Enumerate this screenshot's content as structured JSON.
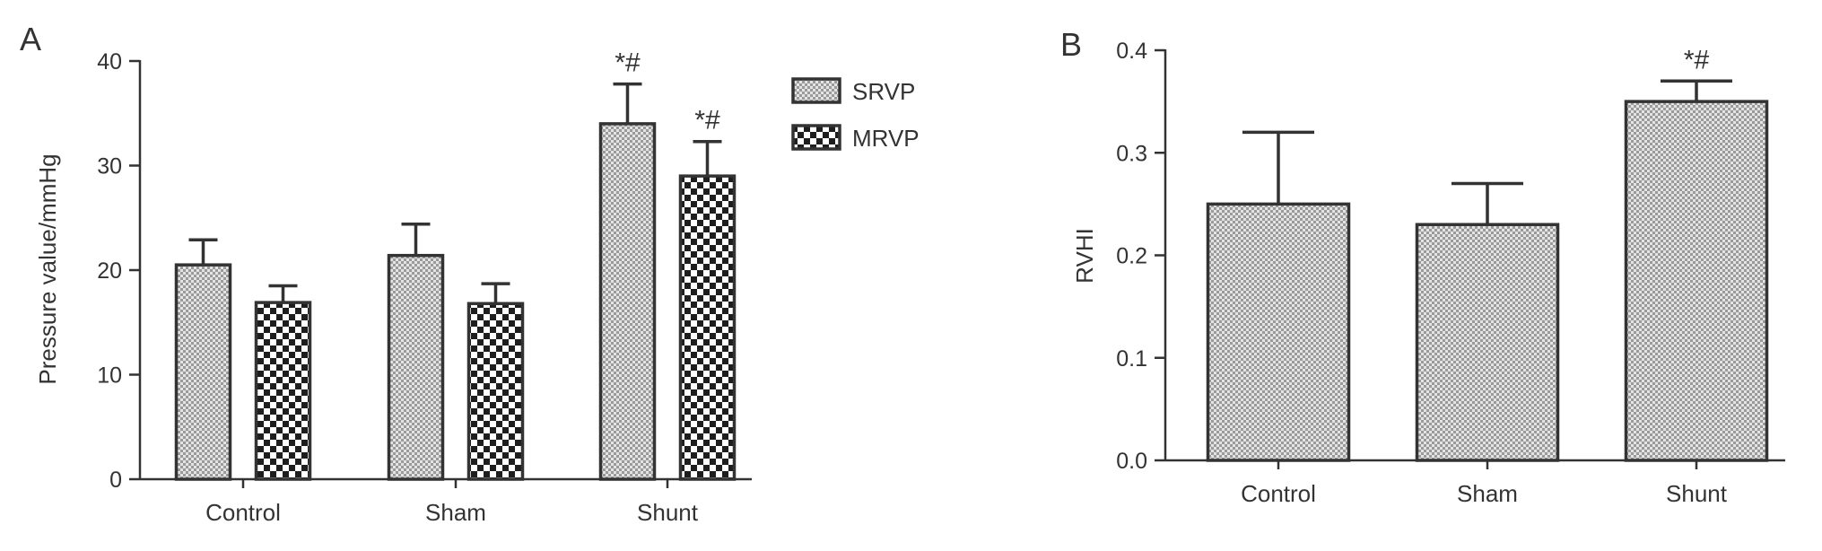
{
  "chart_data": [
    {
      "panel_label": "A",
      "type": "bar",
      "categories": [
        "Control",
        "Sham",
        "Shunt"
      ],
      "series": [
        {
          "name": "SRVP",
          "values": [
            20.5,
            21.4,
            34.0
          ],
          "errors": [
            2.4,
            3.0,
            3.8
          ],
          "pattern": "fine-dots"
        },
        {
          "name": "MRVP",
          "values": [
            16.9,
            16.8,
            29.0
          ],
          "errors": [
            1.6,
            1.9,
            3.3
          ],
          "pattern": "checker"
        }
      ],
      "annotations": [
        {
          "category": 2,
          "series": 0,
          "text": "*#"
        },
        {
          "category": 2,
          "series": 1,
          "text": "*#"
        }
      ],
      "ylabel": "Pressure value/mmHg",
      "xlabel": "",
      "ylim": [
        0,
        40
      ],
      "yticks": [
        "0",
        "10",
        "20",
        "30",
        "40"
      ],
      "legend": "top-right",
      "grid": false
    },
    {
      "panel_label": "B",
      "type": "bar",
      "categories": [
        "Control",
        "Sham",
        "Shunt"
      ],
      "series": [
        {
          "values": [
            0.25,
            0.23,
            0.35
          ],
          "errors": [
            0.07,
            0.04,
            0.02
          ],
          "pattern": "fine-dots"
        }
      ],
      "annotations": [
        {
          "category": 2,
          "series": 0,
          "text": "*#"
        }
      ],
      "ylabel": "RVHI",
      "xlabel": "",
      "ylim": [
        0,
        0.4
      ],
      "yticks": [
        "0.0",
        "0.1",
        "0.2",
        "0.3",
        "0.4"
      ],
      "grid": false
    }
  ]
}
